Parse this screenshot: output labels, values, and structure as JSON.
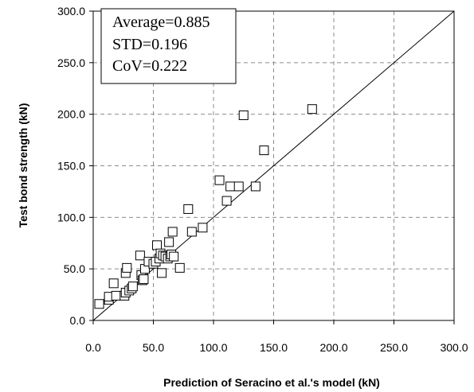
{
  "chart_data": {
    "type": "scatter",
    "title": "",
    "xlabel": "Prediction of Seracino et al.'s model (kN)",
    "ylabel": "Test bond strength (kN)",
    "xlim": [
      0,
      300
    ],
    "ylim": [
      0,
      300
    ],
    "x_ticks": [
      "0.0",
      "50.0",
      "100.0",
      "150.0",
      "200.0",
      "250.0",
      "300.0"
    ],
    "y_ticks": [
      "0.0",
      "50.0",
      "100.0",
      "150.0",
      "200.0",
      "250.0",
      "300.0"
    ],
    "grid": true,
    "grid_style": "dashed",
    "marker": "open-square",
    "reference_line": {
      "x": [
        0,
        300
      ],
      "y": [
        0,
        300
      ]
    },
    "stats": [
      "Average=0.885",
      "STD=0.196",
      "CoV=0.222"
    ],
    "stats_placement": "top-left",
    "points": [
      {
        "x": 5,
        "y": 16
      },
      {
        "x": 13,
        "y": 20
      },
      {
        "x": 13,
        "y": 23
      },
      {
        "x": 17,
        "y": 36
      },
      {
        "x": 19,
        "y": 24
      },
      {
        "x": 26,
        "y": 24
      },
      {
        "x": 27,
        "y": 27
      },
      {
        "x": 27,
        "y": 46
      },
      {
        "x": 28,
        "y": 51
      },
      {
        "x": 30,
        "y": 29
      },
      {
        "x": 32,
        "y": 31
      },
      {
        "x": 33,
        "y": 33
      },
      {
        "x": 39,
        "y": 63
      },
      {
        "x": 40,
        "y": 44
      },
      {
        "x": 41,
        "y": 39
      },
      {
        "x": 42,
        "y": 40
      },
      {
        "x": 43,
        "y": 50
      },
      {
        "x": 46,
        "y": 57
      },
      {
        "x": 50,
        "y": 55
      },
      {
        "x": 52,
        "y": 57
      },
      {
        "x": 53,
        "y": 73
      },
      {
        "x": 55,
        "y": 60
      },
      {
        "x": 56,
        "y": 65
      },
      {
        "x": 57,
        "y": 46
      },
      {
        "x": 58,
        "y": 63
      },
      {
        "x": 60,
        "y": 62
      },
      {
        "x": 62,
        "y": 60
      },
      {
        "x": 63,
        "y": 76
      },
      {
        "x": 64,
        "y": 62
      },
      {
        "x": 65,
        "y": 64
      },
      {
        "x": 66,
        "y": 86
      },
      {
        "x": 67,
        "y": 62
      },
      {
        "x": 72,
        "y": 51
      },
      {
        "x": 79,
        "y": 108
      },
      {
        "x": 82,
        "y": 86
      },
      {
        "x": 91,
        "y": 90
      },
      {
        "x": 105,
        "y": 136
      },
      {
        "x": 111,
        "y": 116
      },
      {
        "x": 114,
        "y": 130
      },
      {
        "x": 121,
        "y": 130
      },
      {
        "x": 125,
        "y": 199
      },
      {
        "x": 135,
        "y": 130
      },
      {
        "x": 142,
        "y": 165
      },
      {
        "x": 182,
        "y": 205
      }
    ]
  }
}
